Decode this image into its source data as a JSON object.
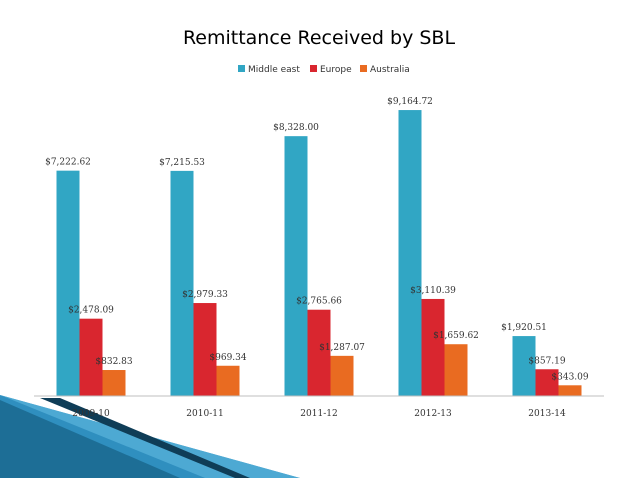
{
  "chart_data": {
    "type": "bar",
    "title": "Remittance Received by SBL",
    "categories": [
      "2009-10",
      "2010-11",
      "2011-12",
      "2012-13",
      "2013-14"
    ],
    "series": [
      {
        "name": "Middle east",
        "color": "#31a6c4",
        "values": [
          7222.62,
          7215.53,
          8328.0,
          9164.72,
          1920.51
        ],
        "labels": [
          "$7,222.62",
          "$7,215.53",
          "$8,328.00",
          "$9,164.72",
          "$1,920.51"
        ]
      },
      {
        "name": "Europe",
        "color": "#d9262f",
        "values": [
          2478.09,
          2979.33,
          2765.66,
          3110.39,
          857.19
        ],
        "labels": [
          "$2,478.09",
          "$2,979.33",
          "$2,765.66",
          "$3,110.39",
          "$857.19"
        ]
      },
      {
        "name": "Australia",
        "color": "#e96b21",
        "values": [
          832.83,
          969.34,
          1287.07,
          1659.62,
          343.09
        ],
        "labels": [
          "$832.83",
          "$969.34",
          "$1,287.07",
          "$1,659.62",
          "$343.09"
        ]
      }
    ],
    "ylim": [
      0,
      10000
    ],
    "legend_position": "top-center",
    "grid": false
  },
  "decor": {
    "ribbon_colors": [
      "#1d6e96",
      "#2f8fbf",
      "#5ab3db",
      "#0f3d57"
    ]
  }
}
